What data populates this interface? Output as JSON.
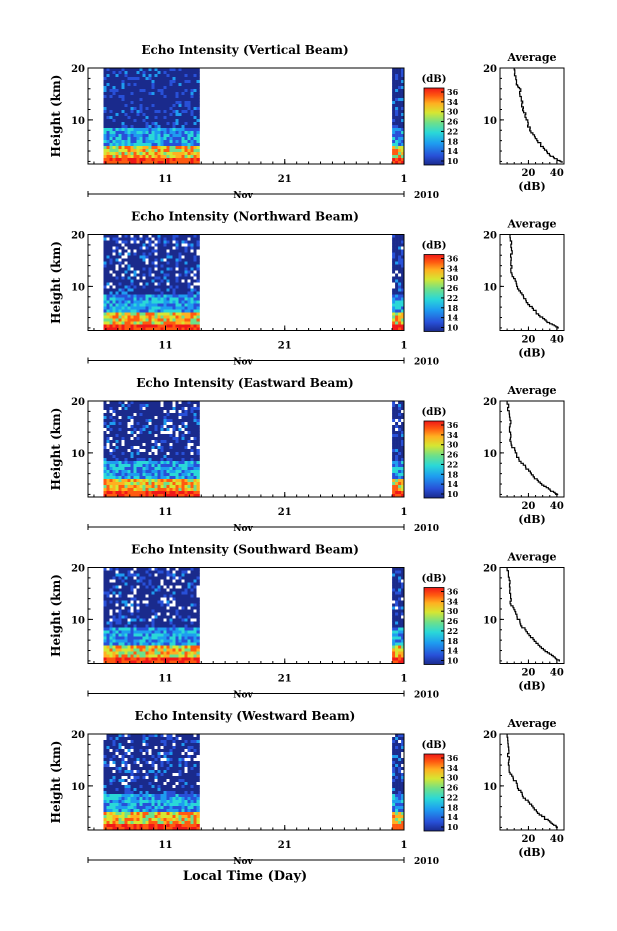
{
  "chart_data": [
    {
      "type": "heatmap",
      "title": "Echo Intensity (Vertical Beam)",
      "ylabel": "Height (km)",
      "yticks": [
        "20",
        "10"
      ],
      "ylim": [
        1.5,
        20
      ],
      "xticks": [
        "11",
        "21",
        "1"
      ],
      "month_label": "Nov",
      "year_label": "2010",
      "data_segments": [
        [
          5.8,
          13.8
        ],
        [
          30.0,
          31.0
        ]
      ],
      "colorbar": {
        "title": "(dB)",
        "labels": [
          "36",
          "34",
          "30",
          "26",
          "22",
          "18",
          "14",
          "10"
        ],
        "range": [
          10,
          36
        ]
      },
      "average": {
        "title": "Average",
        "xlabel": "(dB)",
        "xticks": [
          "20",
          "40"
        ],
        "xlim": [
          0,
          45
        ],
        "yticks": [
          "20",
          "10"
        ],
        "profile": [
          [
            10,
            20
          ],
          [
            11,
            18.5
          ],
          [
            12,
            17
          ],
          [
            14,
            16
          ],
          [
            15,
            14
          ],
          [
            16,
            12.5
          ],
          [
            18,
            11
          ],
          [
            20,
            9
          ],
          [
            23,
            7.5
          ],
          [
            27,
            6
          ],
          [
            31,
            4.5
          ],
          [
            36,
            3.2
          ],
          [
            41,
            2.3
          ],
          [
            44,
            1.8
          ]
        ]
      }
    },
    {
      "type": "heatmap",
      "title": "Echo Intensity (Northward Beam)",
      "ylabel": "Height (km)",
      "yticks": [
        "20",
        "10"
      ],
      "ylim": [
        1.5,
        20
      ],
      "xticks": [
        "11",
        "21",
        "1"
      ],
      "month_label": "Nov",
      "year_label": "2010",
      "data_segments": [
        [
          5.8,
          13.8
        ],
        [
          30.0,
          31.0
        ]
      ],
      "colorbar": {
        "title": "(dB)",
        "labels": [
          "36",
          "34",
          "30",
          "26",
          "22",
          "18",
          "14",
          "10"
        ],
        "range": [
          10,
          36
        ]
      },
      "average": {
        "title": "Average",
        "xlabel": "(dB)",
        "xticks": [
          "20",
          "40"
        ],
        "xlim": [
          0,
          45
        ],
        "yticks": [
          "20",
          "10"
        ],
        "profile": [
          [
            7,
            20
          ],
          [
            8,
            17.5
          ],
          [
            8,
            15
          ],
          [
            8,
            13
          ],
          [
            10,
            11.5
          ],
          [
            13,
            9.5
          ],
          [
            17,
            8
          ],
          [
            21,
            6.5
          ],
          [
            26,
            5
          ],
          [
            31,
            3.8
          ],
          [
            36,
            2.8
          ],
          [
            42,
            2
          ]
        ]
      }
    },
    {
      "type": "heatmap",
      "title": "Echo Intensity (Eastward Beam)",
      "ylabel": "Height (km)",
      "yticks": [
        "20",
        "10"
      ],
      "ylim": [
        1.5,
        20
      ],
      "xticks": [
        "11",
        "21",
        "1"
      ],
      "month_label": "Nov",
      "year_label": "2010",
      "data_segments": [
        [
          5.8,
          13.8
        ],
        [
          30.0,
          31.0
        ]
      ],
      "colorbar": {
        "title": "(dB)",
        "labels": [
          "36",
          "34",
          "30",
          "26",
          "22",
          "18",
          "14",
          "10"
        ],
        "range": [
          10,
          36
        ]
      },
      "average": {
        "title": "Average",
        "xlabel": "(dB)",
        "xticks": [
          "20",
          "40"
        ],
        "xlim": [
          0,
          45
        ],
        "yticks": [
          "20",
          "10"
        ],
        "profile": [
          [
            5,
            20
          ],
          [
            7,
            17.5
          ],
          [
            7,
            15
          ],
          [
            7,
            13
          ],
          [
            9,
            11.5
          ],
          [
            12,
            9.5
          ],
          [
            16,
            8
          ],
          [
            21,
            6.5
          ],
          [
            26,
            5
          ],
          [
            31,
            3.8
          ],
          [
            36,
            2.8
          ],
          [
            41,
            2
          ]
        ]
      }
    },
    {
      "type": "heatmap",
      "title": "Echo Intensity (Southward Beam)",
      "ylabel": "Height (km)",
      "yticks": [
        "20",
        "10"
      ],
      "ylim": [
        1.5,
        20
      ],
      "xticks": [
        "11",
        "21",
        "1"
      ],
      "month_label": "Nov",
      "year_label": "2010",
      "data_segments": [
        [
          5.8,
          13.8
        ],
        [
          30.0,
          31.0
        ]
      ],
      "colorbar": {
        "title": "(dB)",
        "labels": [
          "36",
          "34",
          "30",
          "26",
          "22",
          "18",
          "14",
          "10"
        ],
        "range": [
          10,
          36
        ]
      },
      "average": {
        "title": "Average",
        "xlabel": "(dB)",
        "xticks": [
          "20",
          "40"
        ],
        "xlim": [
          0,
          45
        ],
        "yticks": [
          "20",
          "10"
        ],
        "profile": [
          [
            5,
            20
          ],
          [
            7,
            17.5
          ],
          [
            7,
            15
          ],
          [
            8,
            13
          ],
          [
            11,
            11.5
          ],
          [
            14,
            9.5
          ],
          [
            18,
            8
          ],
          [
            23,
            6.5
          ],
          [
            28,
            5
          ],
          [
            33,
            3.8
          ],
          [
            38,
            2.8
          ],
          [
            42,
            2
          ]
        ]
      }
    },
    {
      "type": "heatmap",
      "title": "Echo Intensity (Westward Beam)",
      "ylabel": "Height (km)",
      "yticks": [
        "20",
        "10"
      ],
      "ylim": [
        1.5,
        20
      ],
      "xticks": [
        "11",
        "21",
        "1"
      ],
      "month_label": "Nov",
      "year_label": "2010",
      "data_segments": [
        [
          5.8,
          13.8
        ],
        [
          30.0,
          31.0
        ]
      ],
      "colorbar": {
        "title": "(dB)",
        "labels": [
          "36",
          "34",
          "30",
          "26",
          "22",
          "18",
          "14",
          "10"
        ],
        "range": [
          10,
          36
        ]
      },
      "average": {
        "title": "Average",
        "xlabel": "(dB)",
        "xticks": [
          "20",
          "40"
        ],
        "xlim": [
          0,
          45
        ],
        "yticks": [
          "20",
          "10"
        ],
        "profile": [
          [
            5,
            20
          ],
          [
            6,
            17.5
          ],
          [
            6,
            15
          ],
          [
            7,
            13
          ],
          [
            10,
            11.5
          ],
          [
            13,
            9.5
          ],
          [
            17,
            8
          ],
          [
            22,
            6.5
          ],
          [
            27,
            5
          ],
          [
            32,
            3.8
          ],
          [
            37,
            2.8
          ],
          [
            41,
            2
          ]
        ]
      }
    }
  ],
  "shared": {
    "xlabel": "Local Time (Day)",
    "colors": [
      "#1a2a8c",
      "#2850d8",
      "#1e9cf0",
      "#2ad8d8",
      "#6ee08a",
      "#d6e632",
      "#ffb020",
      "#ff5a10",
      "#f01818"
    ]
  }
}
